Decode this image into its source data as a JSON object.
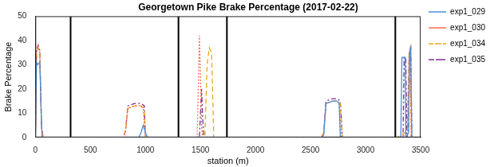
{
  "chart_data": {
    "type": "line",
    "title": "Georgetown Pike Brake Percentage (2017-02-22)",
    "x_label": "station (m)",
    "y_label": "Brake Percentage",
    "xlim": [
      0,
      3500
    ],
    "xticks": [
      0,
      500,
      1000,
      1500,
      2000,
      2500,
      3000,
      3500
    ],
    "ylim": [
      0,
      50
    ],
    "yticks": [
      0,
      10,
      20,
      30,
      40,
      50
    ],
    "grid": false,
    "legend": "right",
    "vlines": [
      320,
      1300,
      1740,
      3270
    ],
    "series": [
      {
        "name": "exp1_029",
        "color": "#4a90d9",
        "line_style": "solid",
        "x": [
          0,
          10,
          20,
          40,
          60,
          80,
          500,
          900,
          940,
          960,
          980,
          1000,
          1020,
          1500,
          2600,
          2620,
          2640,
          2700,
          2740,
          2760,
          2770,
          3300,
          3320,
          3330,
          3360,
          3365,
          3390,
          3400,
          3410,
          3420
        ],
        "values": [
          0,
          31,
          30,
          31,
          0,
          0,
          0,
          0,
          0,
          2,
          5,
          2,
          0,
          0,
          0,
          1,
          14,
          15,
          15,
          14,
          0,
          0,
          0,
          33,
          33,
          0,
          2,
          35,
          37,
          0
        ]
      },
      {
        "name": "exp1_030",
        "color": "#ff6a4d",
        "line_style": "dotted",
        "x": [
          0,
          10,
          25,
          40,
          55,
          70,
          800,
          820,
          840,
          900,
          960,
          980,
          990,
          1000,
          1470,
          1480,
          1490,
          1500,
          1510,
          1520,
          2600,
          2620,
          2640,
          2700,
          2740,
          2760,
          2780,
          3300,
          3350,
          3380,
          3395,
          3405,
          3415,
          3420
        ],
        "values": [
          0,
          35,
          38,
          35,
          5,
          0,
          0,
          3,
          12,
          13,
          13,
          12,
          5,
          0,
          0,
          20,
          42,
          25,
          5,
          0,
          0,
          2,
          14,
          15,
          15,
          14,
          0,
          0,
          1,
          3,
          35,
          36,
          0,
          0
        ]
      },
      {
        "name": "exp1_034",
        "color": "#e8a817",
        "line_style": "dashed",
        "x": [
          0,
          10,
          25,
          40,
          55,
          70,
          800,
          820,
          840,
          900,
          960,
          990,
          1000,
          1540,
          1560,
          1580,
          1600,
          1610,
          1620,
          2600,
          2620,
          2640,
          2700,
          2740,
          2770,
          2790,
          3280,
          3320,
          3360,
          3380,
          3395,
          3405,
          3415,
          3420
        ],
        "values": [
          0,
          34,
          37,
          35,
          5,
          0,
          0,
          3,
          12,
          13,
          13,
          12,
          0,
          0,
          30,
          37,
          35,
          20,
          0,
          0,
          2,
          14,
          15,
          15,
          14,
          0,
          0,
          1,
          2,
          4,
          35,
          37,
          0,
          0
        ]
      },
      {
        "name": "exp1_035",
        "color": "#7e2f8e",
        "line_style": "dashdot",
        "x": [
          0,
          10,
          25,
          40,
          55,
          70,
          800,
          820,
          840,
          900,
          960,
          990,
          1000,
          1490,
          1500,
          1510,
          1520,
          1530,
          2600,
          2620,
          2640,
          2700,
          2740,
          2770,
          2790,
          3300,
          3340,
          3350,
          3365,
          3375,
          3390,
          3400,
          3410,
          3420
        ],
        "values": [
          0,
          36,
          38,
          36,
          5,
          0,
          0,
          3,
          13,
          14,
          14,
          13,
          0,
          0,
          10,
          20,
          8,
          0,
          0,
          2,
          15,
          16,
          16,
          15,
          0,
          0,
          0,
          33,
          33,
          0,
          3,
          36,
          37,
          0
        ]
      }
    ]
  }
}
